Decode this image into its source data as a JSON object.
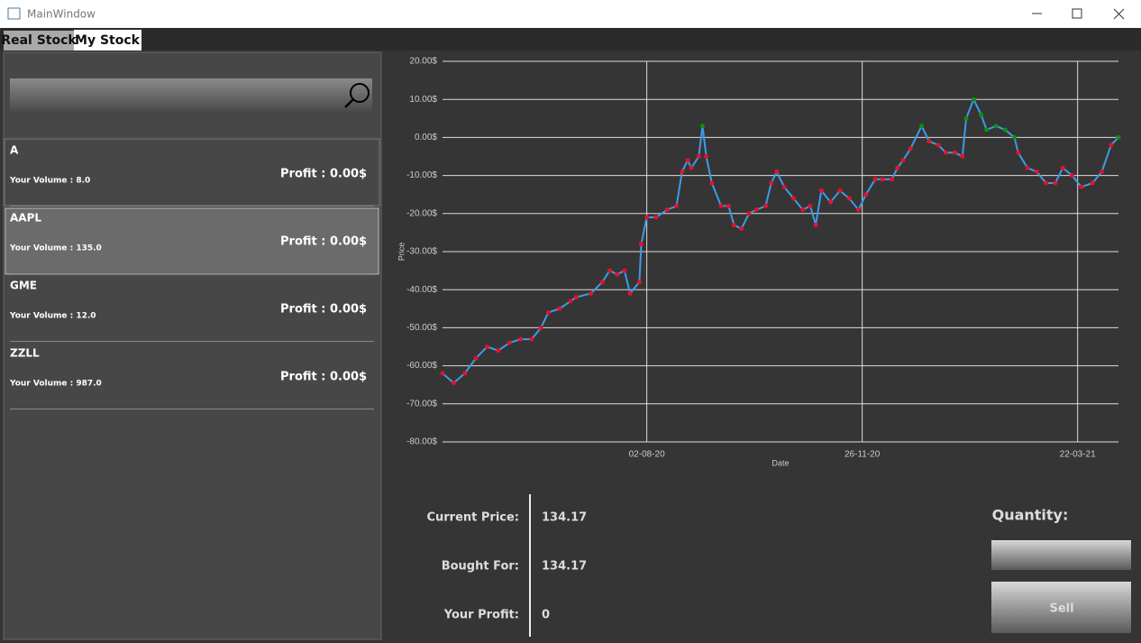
{
  "window": {
    "title": "MainWindow"
  },
  "tabs": [
    "Real Stock",
    "My Stock"
  ],
  "stocks": [
    {
      "symbol": "A",
      "volume": "Your Volume : 8.0",
      "profit": "Profit : 0.00$"
    },
    {
      "symbol": "AAPL",
      "volume": "Your Volume : 135.0",
      "profit": "Profit : 0.00$"
    },
    {
      "symbol": "GME",
      "volume": "Your Volume : 12.0",
      "profit": "Profit : 0.00$"
    },
    {
      "symbol": "ZZLL",
      "volume": "Your Volume : 987.0",
      "profit": "Profit : 0.00$"
    }
  ],
  "chart_data": {
    "type": "line",
    "x_label": "Date",
    "y_label": "Price",
    "color": "#3d9be9",
    "marker_colors": {
      "below": "#e8102a",
      "above": "#109010"
    },
    "x": [
      "2020-04-14",
      "2020-04-20",
      "2020-04-26",
      "2020-05-02",
      "2020-05-08",
      "2020-05-14",
      "2020-05-20",
      "2020-05-26",
      "2020-06-01",
      "2020-06-06",
      "2020-06-10",
      "2020-06-16",
      "2020-06-22",
      "2020-06-25",
      "2020-07-03",
      "2020-07-09",
      "2020-07-13",
      "2020-07-17",
      "2020-07-21",
      "2020-07-24",
      "2020-07-29",
      "2020-07-30",
      "2020-08-02",
      "2020-08-07",
      "2020-08-13",
      "2020-08-18",
      "2020-08-21",
      "2020-08-24",
      "2020-08-26",
      "2020-08-30",
      "2020-09-01",
      "2020-09-03",
      "2020-09-06",
      "2020-09-11",
      "2020-09-15",
      "2020-09-18",
      "2020-09-22",
      "2020-09-26",
      "2020-09-30",
      "2020-10-05",
      "2020-10-08",
      "2020-10-11",
      "2020-10-15",
      "2020-10-20",
      "2020-10-25",
      "2020-10-29",
      "2020-11-01",
      "2020-11-04",
      "2020-11-09",
      "2020-11-14",
      "2020-11-19",
      "2020-11-24",
      "2020-11-28",
      "2020-12-03",
      "2020-12-07",
      "2020-12-12",
      "2020-12-15",
      "2020-12-18",
      "2020-12-22",
      "2020-12-28",
      "2021-01-01",
      "2021-01-06",
      "2021-01-10",
      "2021-01-15",
      "2021-01-19",
      "2021-01-21",
      "2021-01-25",
      "2021-01-29",
      "2021-02-01",
      "2021-02-06",
      "2021-02-11",
      "2021-02-16",
      "2021-02-18",
      "2021-02-23",
      "2021-02-28",
      "2021-03-05",
      "2021-03-10",
      "2021-03-14",
      "2021-03-19",
      "2021-03-24",
      "2021-03-30",
      "2021-04-04",
      "2021-04-09",
      "2021-04-13"
    ],
    "values": [
      -62,
      -64.5,
      -62,
      -58,
      -55,
      -56,
      -54,
      -53,
      -53,
      -50,
      -46,
      -45,
      -43,
      -42,
      -41,
      -38,
      -35,
      -36,
      -35,
      -41,
      -38,
      -28,
      -21,
      -21,
      -19,
      -18,
      -9,
      -6,
      -8,
      -5,
      3,
      -5,
      -12,
      -18,
      -18,
      -23,
      -24,
      -20,
      -19,
      -18,
      -12,
      -9,
      -13,
      -16,
      -19,
      -18,
      -23,
      -14,
      -17,
      -14,
      -16,
      -19,
      -15,
      -11,
      -11,
      -11,
      -8,
      -6,
      -3,
      3,
      -1,
      -2,
      -4,
      -4,
      -5,
      5,
      10,
      6,
      2,
      3,
      2,
      0,
      -4,
      -8,
      -9,
      -12,
      -12,
      -8,
      -10,
      -13,
      -12,
      -9,
      -2,
      0
    ],
    "xlim": [
      "2020-04-14",
      "2021-04-13"
    ],
    "xticks": [
      {
        "value": "2020-08-02",
        "label": "02-08-20"
      },
      {
        "value": "2020-11-26",
        "label": "26-11-20"
      },
      {
        "value": "2021-03-22",
        "label": "22-03-21"
      }
    ],
    "ylim": [
      -80,
      20
    ],
    "yticks": [
      {
        "value": -80,
        "label": "-80.00$"
      },
      {
        "value": -70,
        "label": "-70.00$"
      },
      {
        "value": -60,
        "label": "-60.00$"
      },
      {
        "value": -50,
        "label": "-50.00$"
      },
      {
        "value": -40,
        "label": "-40.00$"
      },
      {
        "value": -30,
        "label": "-30.00$"
      },
      {
        "value": -20,
        "label": "-20.00$"
      },
      {
        "value": -10,
        "label": "-10.00$"
      },
      {
        "value": 0,
        "label": "0.00$"
      },
      {
        "value": 10,
        "label": "10.00$"
      },
      {
        "value": 20,
        "label": "20.00$"
      }
    ],
    "grid": true
  },
  "details": {
    "rows": [
      {
        "label": "Current Price:",
        "value": "134.17"
      },
      {
        "label": "Bought For:",
        "value": "134.17"
      },
      {
        "label": "Your Profit:",
        "value": "0"
      }
    ]
  },
  "order": {
    "quantity_label": "Quantity:",
    "sell_button": "Sell"
  }
}
